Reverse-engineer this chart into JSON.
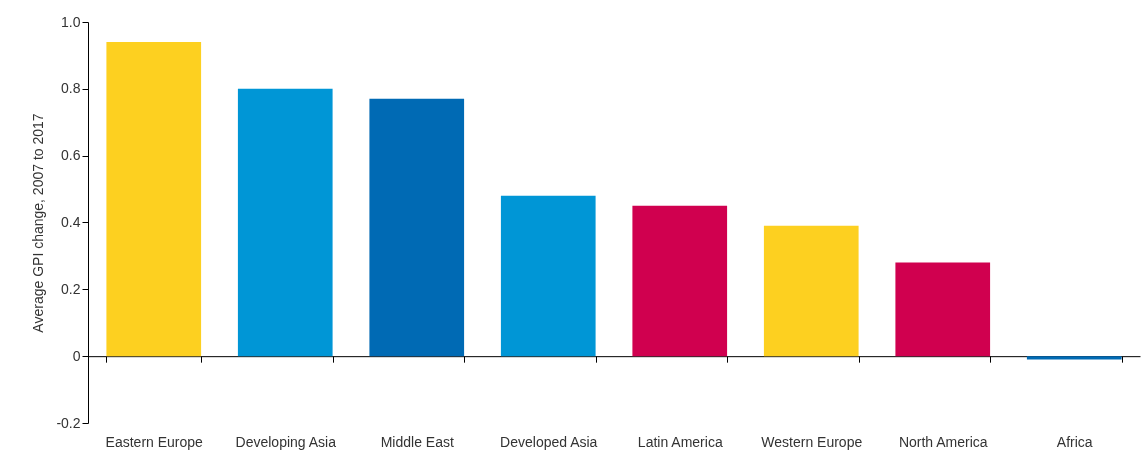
{
  "chart_data": {
    "type": "bar",
    "ylabel": "Average GPI change, 2007 to 2017",
    "categories": [
      "Eastern Europe",
      "Developing Asia",
      "Middle East",
      "Developed Asia",
      "Latin America",
      "Western Europe",
      "North America",
      "Africa"
    ],
    "values": [
      0.94,
      0.8,
      0.77,
      0.48,
      0.45,
      0.39,
      0.28,
      -0.01
    ],
    "colors": [
      "#fdd020",
      "#0096d6",
      "#006ab4",
      "#0096d6",
      "#d0004f",
      "#fdd020",
      "#d0004f",
      "#006ab4"
    ],
    "ylim": [
      -0.2,
      1.0
    ],
    "yticks": [
      {
        "value": -0.2,
        "label": "-0.2"
      },
      0,
      0.2,
      0.4,
      0.6,
      0.8,
      {
        "value": 1,
        "label": "1.0"
      }
    ],
    "legend": false
  }
}
